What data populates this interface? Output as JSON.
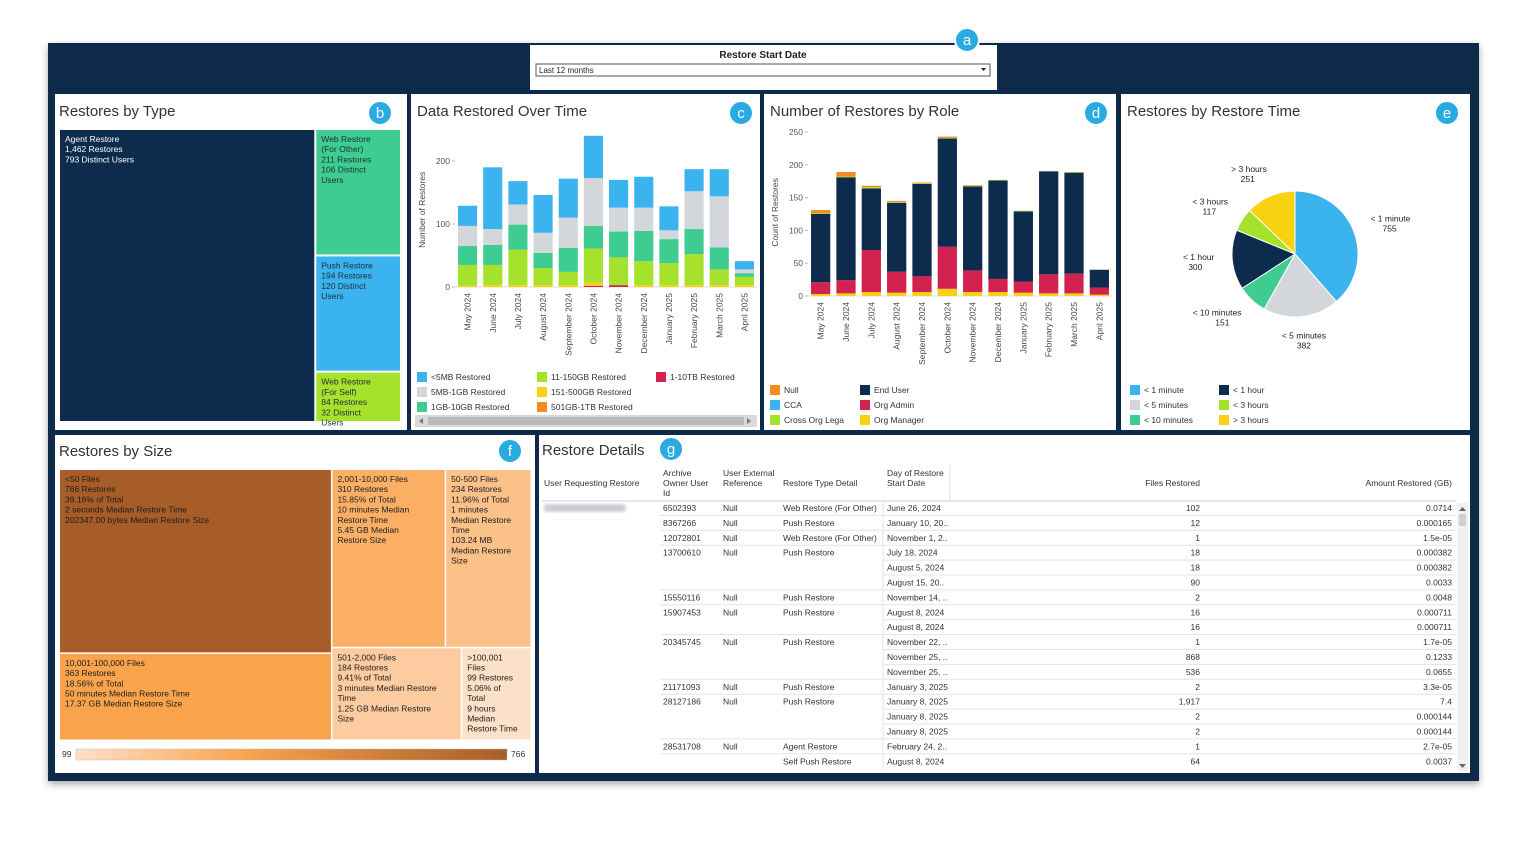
{
  "filter": {
    "label": "Restore Start Date",
    "value": "Last 12 months"
  },
  "badges": [
    "a",
    "b",
    "c",
    "d",
    "e",
    "f",
    "g"
  ],
  "chart_data": [
    {
      "type": "treemap",
      "title": "Restores by Type",
      "categories": [
        "Agent Restore",
        "Web Restore (For Other)",
        "Push Restore",
        "Web Restore (For Self)"
      ],
      "values": [
        1462,
        211,
        194,
        84
      ],
      "value_labels": [
        "1,462 Restores",
        "211 Restores",
        "194 Restores",
        "84 Restores"
      ],
      "users": [
        793,
        106,
        120,
        32
      ],
      "user_labels": [
        "793 Distinct Users",
        "106 Distinct Users",
        "120 Distinct Users",
        "32 Distinct Users"
      ],
      "colors": [
        "#0c2b4d",
        "#3fcc90",
        "#3bb3ee",
        "#a6e22b"
      ]
    },
    {
      "type": "stacked_bar",
      "title": "Data Restored Over Time",
      "ylabel": "Number of Restores",
      "categories": [
        "May 2024",
        "June 2024",
        "July 2024",
        "August 2024",
        "September 2024",
        "October 2024",
        "November 2024",
        "December 2024",
        "January 2025",
        "February 2025",
        "March 2025",
        "April 2025"
      ],
      "ylim": [
        0,
        245
      ],
      "yticks": [
        0,
        100,
        200
      ],
      "series": [
        {
          "name": "<5MB Restored",
          "color": "#3bb3ee",
          "values": [
            32,
            98,
            37,
            60,
            62,
            67,
            44,
            49,
            38,
            35,
            43,
            13
          ]
        },
        {
          "name": "5MB-1GB Restored",
          "color": "#d3d6da",
          "values": [
            32,
            25,
            32,
            32,
            48,
            76,
            38,
            37,
            14,
            60,
            81,
            6
          ]
        },
        {
          "name": "1GB-10GB Restored",
          "color": "#3fcc90",
          "values": [
            30,
            32,
            40,
            24,
            38,
            36,
            41,
            48,
            38,
            40,
            35,
            6
          ]
        },
        {
          "name": "11-150GB Restored",
          "color": "#a6e22b",
          "values": [
            33,
            32,
            56,
            27,
            21,
            54,
            44,
            38,
            35,
            49,
            25,
            13
          ]
        },
        {
          "name": "151-500GB Restored",
          "color": "#f8d212",
          "values": [
            2,
            3,
            3,
            3,
            3,
            5,
            0,
            3,
            3,
            3,
            3,
            3
          ]
        },
        {
          "name": "501GB-1TB Restored",
          "color": "#f58c1e",
          "values": [
            0,
            0,
            0,
            0,
            0,
            0,
            0,
            0,
            0,
            0,
            0,
            0
          ]
        },
        {
          "name": "1-10TB Restored",
          "color": "#d3224f",
          "values": [
            0,
            0,
            0,
            0,
            0,
            2,
            3,
            0,
            0,
            0,
            0,
            0
          ]
        }
      ]
    },
    {
      "type": "stacked_bar",
      "title": "Number of Restores by Role",
      "ylabel": "Count of Restores",
      "categories": [
        "May 2024",
        "June 2024",
        "July 2024",
        "August 2024",
        "September 2024",
        "October 2024",
        "November 2024",
        "December 2024",
        "January 2025",
        "February 2025",
        "March 2025",
        "April 2025"
      ],
      "ylim": [
        0,
        255
      ],
      "yticks": [
        0,
        50,
        100,
        150,
        200,
        250
      ],
      "series": [
        {
          "name": "Null",
          "color": "#f58c1e",
          "values": [
            5,
            7,
            2,
            2,
            1,
            2,
            1,
            0,
            0,
            0,
            0,
            0
          ]
        },
        {
          "name": "CCA",
          "color": "#3bb3ee",
          "values": [
            0,
            0,
            0,
            0,
            0,
            0,
            0,
            0,
            0,
            0,
            0,
            0
          ]
        },
        {
          "name": "Cross Org Lega",
          "color": "#a6e22b",
          "values": [
            1,
            1,
            2,
            1,
            1,
            1,
            1,
            1,
            1,
            0,
            1,
            0
          ]
        },
        {
          "name": "End User",
          "color": "#0c2b4d",
          "values": [
            104,
            157,
            94,
            105,
            141,
            165,
            128,
            150,
            107,
            157,
            154,
            27
          ]
        },
        {
          "name": "Org Admin",
          "color": "#d3224f",
          "values": [
            18,
            20,
            64,
            32,
            24,
            64,
            33,
            20,
            17,
            29,
            30,
            11
          ]
        },
        {
          "name": "Org Manager",
          "color": "#f8d212",
          "values": [
            3,
            4,
            6,
            5,
            6,
            11,
            6,
            6,
            5,
            4,
            4,
            2
          ]
        }
      ]
    },
    {
      "type": "pie",
      "title": "Restores by Restore Time",
      "categories": [
        "< 1 minute",
        "< 5 minutes",
        "< 10 minutes",
        "< 1 hour",
        "< 3 hours",
        "> 3 hours"
      ],
      "values": [
        755,
        382,
        151,
        300,
        117,
        251
      ],
      "colors": [
        "#3bb3ee",
        "#d3d6da",
        "#3fcc90",
        "#0c2b4d",
        "#a6e22b",
        "#f8d212"
      ]
    },
    {
      "type": "treemap_gradient",
      "title": "Restores by Size",
      "categories": [
        "<50 Files",
        "10,001-100,000 Files",
        "2,001-10,000 Files",
        "50-500 Files",
        "501-2,000 Files",
        ">100,001 Files"
      ],
      "values": [
        766,
        363,
        310,
        234,
        184,
        99
      ],
      "value_labels": [
        "766 Restores",
        "363 Restores",
        "310 Restores",
        "234 Restores",
        "184 Restores",
        "99 Restores"
      ],
      "share_labels": [
        "39.16% of Total",
        "18.56% of Total",
        "15.85% of Total",
        "11.96% of Total",
        "9.41% of Total",
        "5.06% of Total"
      ],
      "time_labels": [
        "2 seconds Median Restore Time",
        "50 minutes Median Restore Time",
        "10 minutes Median Restore Time",
        "1 minutes Median Restore Time",
        "3 minutes Median Restore Time",
        "9 hours Median Restore Time"
      ],
      "size_labels": [
        "202347.00 bytes Median Restore Size",
        "17.37 GB Median Restore Size",
        "5.45 GB Median Restore Size",
        "103.24 MB Median Restore Size",
        "1.25 GB Median Restore Size",
        null
      ],
      "color_scale": {
        "min": 99,
        "max": 766,
        "colors": [
          "#fde0c8",
          "#f9a24b",
          "#a65d28"
        ]
      }
    }
  ],
  "table": {
    "title": "Restore Details",
    "columns": [
      "User Requesting Restore",
      "Archive Owner User Id",
      "User External Reference",
      "Restore Type Detail",
      "Day of Restore Start Date",
      "Files Restored",
      "Amount Restored (GB)"
    ],
    "rows": [
      {
        "owner": "6502393",
        "ext": "Null",
        "type": "Web Restore (For Other)",
        "day": "June 26, 2024",
        "files": "102",
        "amount": "0.0714"
      },
      {
        "owner": "8367266",
        "ext": "Null",
        "type": "Push Restore",
        "day": "January 10, 20..",
        "files": "12",
        "amount": "0.000165"
      },
      {
        "owner": "12072801",
        "ext": "Null",
        "type": "Web Restore (For Other)",
        "day": "November 1, 2..",
        "files": "1",
        "amount": "1.5e-05"
      },
      {
        "owner": "13700610",
        "ext": "Null",
        "type": "Push Restore",
        "day": "July 18, 2024",
        "files": "18",
        "amount": "0.000382"
      },
      {
        "day": "August 5, 2024",
        "files": "18",
        "amount": "0.000382"
      },
      {
        "day": "August 15, 20..",
        "files": "90",
        "amount": "0.0033"
      },
      {
        "owner": "15550116",
        "ext": "Null",
        "type": "Push Restore",
        "day": "November 14, ..",
        "files": "2",
        "amount": "0.0048"
      },
      {
        "owner": "15907453",
        "ext": "Null",
        "type": "Push Restore",
        "day": "August 8, 2024",
        "files": "16",
        "amount": "0.000711"
      },
      {
        "day": "August 8, 2024",
        "files": "16",
        "amount": "0.000711"
      },
      {
        "owner": "20345745",
        "ext": "Null",
        "type": "Push Restore",
        "day": "November 22, ..",
        "files": "1",
        "amount": "1.7e-05"
      },
      {
        "day": "November 25, ..",
        "files": "868",
        "amount": "0.1233"
      },
      {
        "day": "November 25, ..",
        "files": "536",
        "amount": "0.0655"
      },
      {
        "owner": "21171093",
        "ext": "Null",
        "type": "Push Restore",
        "day": "January 3, 2025",
        "files": "2",
        "amount": "3.3e-05"
      },
      {
        "owner": "28127186",
        "ext": "Null",
        "type": "Push Restore",
        "day": "January 8, 2025",
        "files": "1,917",
        "amount": "7.4"
      },
      {
        "day": "January 8, 2025",
        "files": "2",
        "amount": "0.000144"
      },
      {
        "day": "January 8, 2025",
        "files": "2",
        "amount": "0.000144"
      },
      {
        "owner": "28531708",
        "ext": "Null",
        "type": "Agent Restore",
        "day": "February 24, 2..",
        "files": "1",
        "amount": "2.7e-05"
      },
      {
        "type": "Self Push Restore",
        "day": "August 8, 2024",
        "files": "64",
        "amount": "0.0037"
      }
    ]
  }
}
